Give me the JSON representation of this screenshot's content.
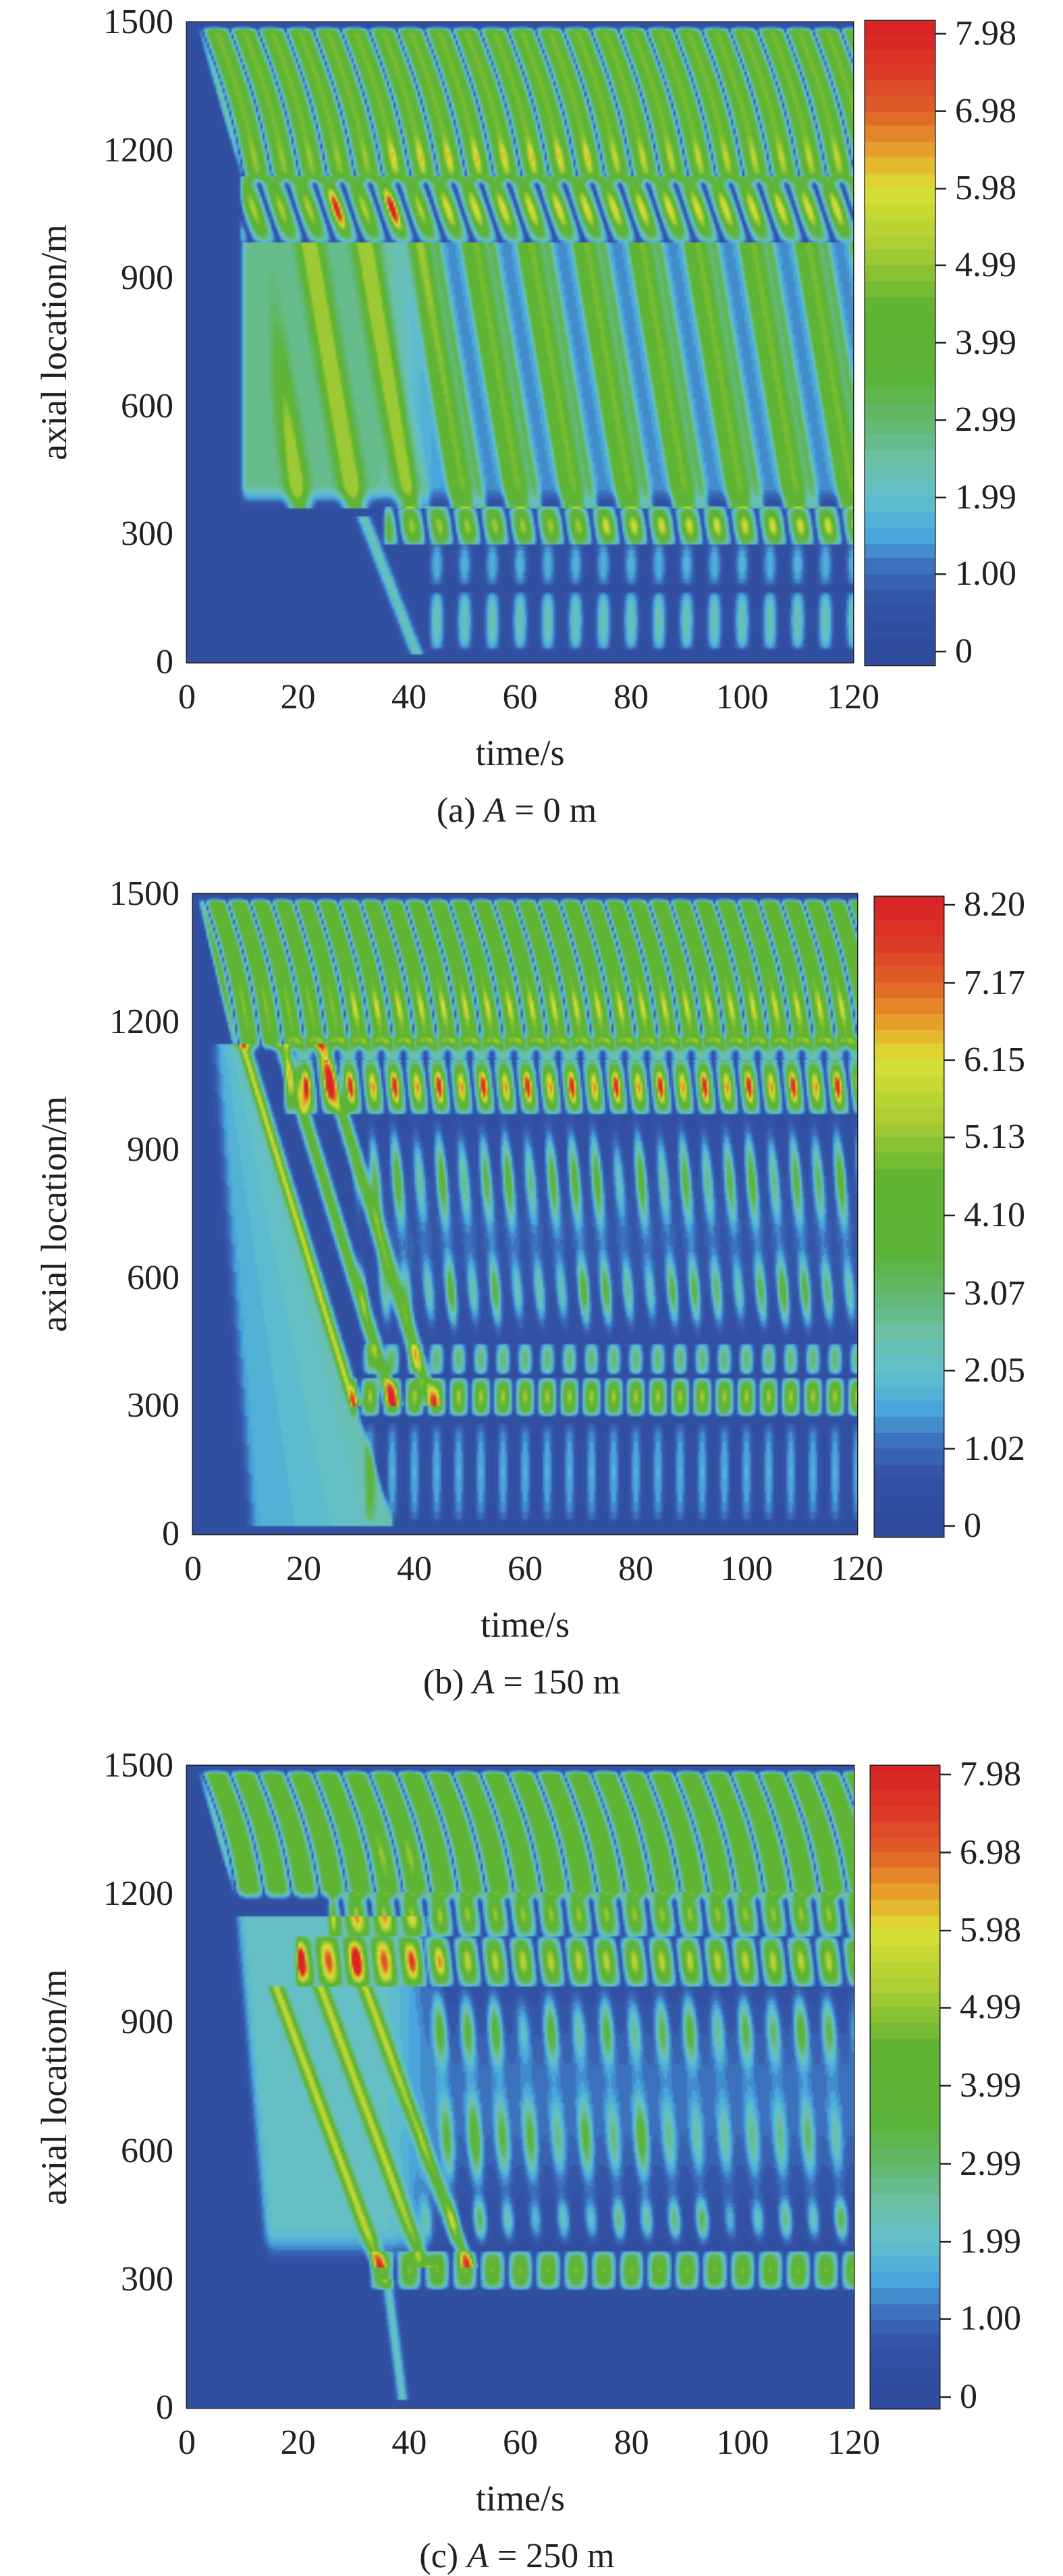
{
  "chart_data": [
    {
      "type": "heatmap",
      "caption": {
        "label": "(a)",
        "variable": "A",
        "value": "= 0 m"
      },
      "xlabel": "time/s",
      "ylabel": "axial location/m",
      "xlim": [
        0,
        120
      ],
      "ylim": [
        0,
        1500
      ],
      "xticks": [
        0,
        20,
        40,
        60,
        80,
        100,
        120
      ],
      "xtick_labels": [
        "0",
        "20",
        "40",
        "60",
        "80",
        "100",
        "120"
      ],
      "yticks": [
        0,
        300,
        600,
        900,
        1200,
        1500
      ],
      "ytick_labels": [
        "0",
        "300",
        "600",
        "900",
        "1200",
        "1500"
      ],
      "colorbar": {
        "min": 0,
        "max": 7.98,
        "ticks": [
          0,
          1.0,
          1.99,
          2.99,
          3.99,
          4.99,
          5.98,
          6.98,
          7.98
        ],
        "tick_labels": [
          "0",
          "1.00",
          "1.99",
          "2.99",
          "3.99",
          "4.99",
          "5.98",
          "6.98",
          "7.98"
        ]
      },
      "peak_value_location": {
        "time": 36,
        "axial_location": 1030
      }
    },
    {
      "type": "heatmap",
      "caption": {
        "label": "(b)",
        "variable": "A",
        "value": "= 150 m"
      },
      "xlabel": "time/s",
      "ylabel": "axial location/m",
      "xlim": [
        0,
        120
      ],
      "ylim": [
        0,
        1500
      ],
      "xticks": [
        0,
        20,
        40,
        60,
        80,
        100,
        120
      ],
      "xtick_labels": [
        "0",
        "20",
        "40",
        "60",
        "80",
        "100",
        "120"
      ],
      "yticks": [
        0,
        300,
        600,
        900,
        1200,
        1500
      ],
      "ytick_labels": [
        "0",
        "300",
        "600",
        "900",
        "1200",
        "1500"
      ],
      "colorbar": {
        "min": 0,
        "max": 8.2,
        "ticks": [
          0,
          1.02,
          2.05,
          3.07,
          4.1,
          5.13,
          6.15,
          7.17,
          8.2
        ],
        "tick_labels": [
          "0",
          "1.02",
          "2.05",
          "3.07",
          "4.10",
          "5.13",
          "6.15",
          "7.17",
          "8.20"
        ]
      },
      "peak_value_location": {
        "time": 27,
        "axial_location": 1045
      }
    },
    {
      "type": "heatmap",
      "caption": {
        "label": "(c)",
        "variable": "A",
        "value": "= 250 m"
      },
      "xlabel": "time/s",
      "ylabel": "axial location/m",
      "xlim": [
        0,
        120
      ],
      "ylim": [
        0,
        1500
      ],
      "xticks": [
        0,
        20,
        40,
        60,
        80,
        100,
        120
      ],
      "xtick_labels": [
        "0",
        "20",
        "40",
        "60",
        "80",
        "100",
        "120"
      ],
      "yticks": [
        0,
        300,
        600,
        900,
        1200,
        1500
      ],
      "ytick_labels": [
        "0",
        "300",
        "600",
        "900",
        "1200",
        "1500"
      ],
      "colorbar": {
        "min": 0,
        "max": 7.98,
        "ticks": [
          0,
          1.0,
          1.99,
          2.99,
          3.99,
          4.99,
          5.98,
          6.98,
          7.98
        ],
        "tick_labels": [
          "0",
          "1.00",
          "1.99",
          "2.99",
          "3.99",
          "4.99",
          "5.98",
          "6.98",
          "7.98"
        ]
      },
      "peak_value_location": {
        "time": 32,
        "axial_location": 1050
      }
    }
  ],
  "colormap": [
    {
      "fraction": 0.0,
      "color": "#2f4b9c"
    },
    {
      "fraction": 0.08,
      "color": "#3353a6"
    },
    {
      "fraction": 0.13,
      "color": "#3a6ab8"
    },
    {
      "fraction": 0.19,
      "color": "#4aa8dc"
    },
    {
      "fraction": 0.25,
      "color": "#62c0cc"
    },
    {
      "fraction": 0.31,
      "color": "#6cbfa4"
    },
    {
      "fraction": 0.37,
      "color": "#62b870"
    },
    {
      "fraction": 0.44,
      "color": "#5db43a"
    },
    {
      "fraction": 0.56,
      "color": "#5fb432"
    },
    {
      "fraction": 0.65,
      "color": "#a6cc34"
    },
    {
      "fraction": 0.75,
      "color": "#dce034"
    },
    {
      "fraction": 0.8,
      "color": "#e8ac2c"
    },
    {
      "fraction": 0.87,
      "color": "#e06428"
    },
    {
      "fraction": 0.94,
      "color": "#dc3a28"
    },
    {
      "fraction": 1.0,
      "color": "#d82424"
    }
  ],
  "axis_color": "#231f20"
}
